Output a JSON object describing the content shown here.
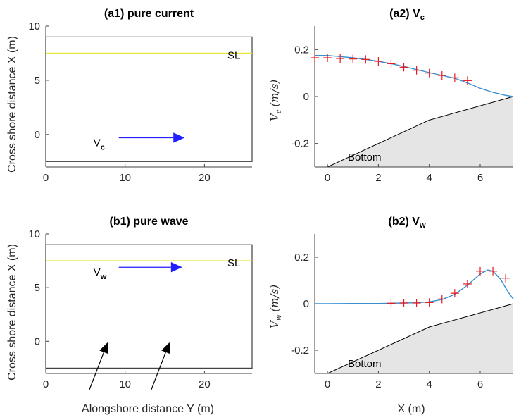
{
  "figure": {
    "ylabel_left": "Cross shore distance X (m)",
    "xlabel_left": "Alongshore distance Y (m)",
    "xlabel_right": "X (m)"
  },
  "chart_data": [
    {
      "id": "a1",
      "type": "diagram",
      "title": "(a1) pure current",
      "xlim": [
        0,
        26
      ],
      "ylim": [
        -3,
        10
      ],
      "xticks": [
        0,
        10,
        20
      ],
      "yticks": [
        0,
        5,
        10
      ],
      "box_x": [
        0,
        26
      ],
      "box_y": [
        -2.5,
        9
      ],
      "sl_level": 7.5,
      "sl_label": "SL",
      "vector_label": "V",
      "vector_sub": "c",
      "vector": {
        "x0": 9.2,
        "y0": -0.3,
        "x1": 17.5,
        "y1": -0.3
      },
      "colors": {
        "sl": "#e8e83a",
        "vector": "#1f1fff",
        "box": "#404040"
      }
    },
    {
      "id": "a2",
      "type": "line",
      "title_main": "(a2) V",
      "title_sub": "c",
      "ylabel_main": "V",
      "ylabel_sub": "c",
      "ylabel_unit": "(m/s)",
      "xlim": [
        -0.5,
        7.3
      ],
      "ylim": [
        -0.3,
        0.3
      ],
      "xticks": [
        0,
        2,
        4,
        6
      ],
      "yticks": [
        -0.2,
        0,
        0.2
      ],
      "ytick_labels": [
        "-0.2",
        "0",
        "0.2"
      ],
      "series": [
        {
          "kind": "model_curve",
          "x": [
            -0.5,
            0,
            0.5,
            1,
            1.5,
            2,
            2.5,
            3,
            3.5,
            4,
            4.5,
            5,
            5.5,
            6,
            6.5,
            7,
            7.3
          ],
          "y": [
            0.175,
            0.175,
            0.17,
            0.165,
            0.158,
            0.15,
            0.14,
            0.128,
            0.115,
            0.102,
            0.09,
            0.078,
            0.058,
            0.035,
            0.018,
            0.005,
            0.0
          ],
          "color": "#3a8fd0"
        },
        {
          "kind": "measurements",
          "x": [
            -0.5,
            0,
            0.5,
            1,
            1.5,
            2,
            2.5,
            3,
            3.5,
            4,
            4.5,
            5,
            5.5
          ],
          "y": [
            0.165,
            0.165,
            0.162,
            0.16,
            0.158,
            0.15,
            0.14,
            0.125,
            0.112,
            0.1,
            0.09,
            0.08,
            0.068
          ],
          "color": "#e8181c"
        }
      ],
      "bottom": {
        "label": "Bottom",
        "x": [
          0,
          4,
          7.3
        ],
        "y": [
          -0.3,
          -0.1,
          0
        ],
        "fill": "#e5e5e5"
      }
    },
    {
      "id": "b1",
      "type": "diagram",
      "title": "(b1) pure wave",
      "xlim": [
        0,
        26
      ],
      "ylim": [
        -3,
        10
      ],
      "xticks": [
        0,
        10,
        20
      ],
      "yticks": [
        0,
        5,
        10
      ],
      "box_x": [
        0,
        26
      ],
      "box_y": [
        -2.5,
        9
      ],
      "sl_level": 7.5,
      "sl_label": "SL",
      "vector_label": "V",
      "vector_sub": "w",
      "vector": {
        "x0": 9.2,
        "y0": 6.9,
        "x1": 17.2,
        "y1": 6.9
      },
      "wave_arrows": [
        {
          "x0": 5.5,
          "y0": -4.5,
          "x1": 7.8,
          "y1": -0.1
        },
        {
          "x0": 13.3,
          "y0": -4.5,
          "x1": 15.6,
          "y1": -0.1
        }
      ],
      "colors": {
        "sl": "#e8e83a",
        "vector": "#1f1fff",
        "box": "#404040"
      }
    },
    {
      "id": "b2",
      "type": "line",
      "title_main": "(b2) V",
      "title_sub": "w",
      "ylabel_main": "V",
      "ylabel_sub": "w",
      "ylabel_unit": "(m/s)",
      "xlim": [
        -0.5,
        7.3
      ],
      "ylim": [
        -0.3,
        0.3
      ],
      "xticks": [
        0,
        2,
        4,
        6
      ],
      "yticks": [
        -0.2,
        0,
        0.2
      ],
      "ytick_labels": [
        "-0.2",
        "0",
        "0.2"
      ],
      "series": [
        {
          "kind": "model_curve",
          "x": [
            -0.5,
            0,
            1,
            2,
            2.5,
            3,
            3.5,
            4,
            4.5,
            5,
            5.5,
            6,
            6.3,
            6.5,
            6.8,
            7.1,
            7.3
          ],
          "y": [
            0.0,
            0.0,
            0.001,
            0.001,
            0.002,
            0.003,
            0.004,
            0.008,
            0.018,
            0.04,
            0.08,
            0.128,
            0.145,
            0.14,
            0.105,
            0.05,
            0.02
          ],
          "color": "#3a8fd0"
        },
        {
          "kind": "measurements",
          "x": [
            2.5,
            3,
            3.5,
            4,
            4.5,
            5,
            5.5,
            6,
            6.5,
            7
          ],
          "y": [
            0.002,
            0.003,
            0.003,
            0.005,
            0.02,
            0.045,
            0.085,
            0.14,
            0.14,
            0.11
          ],
          "color": "#e8181c"
        }
      ],
      "bottom": {
        "label": "Bottom",
        "x": [
          0,
          4,
          7.3
        ],
        "y": [
          -0.3,
          -0.1,
          0
        ],
        "fill": "#e5e5e5"
      }
    }
  ]
}
